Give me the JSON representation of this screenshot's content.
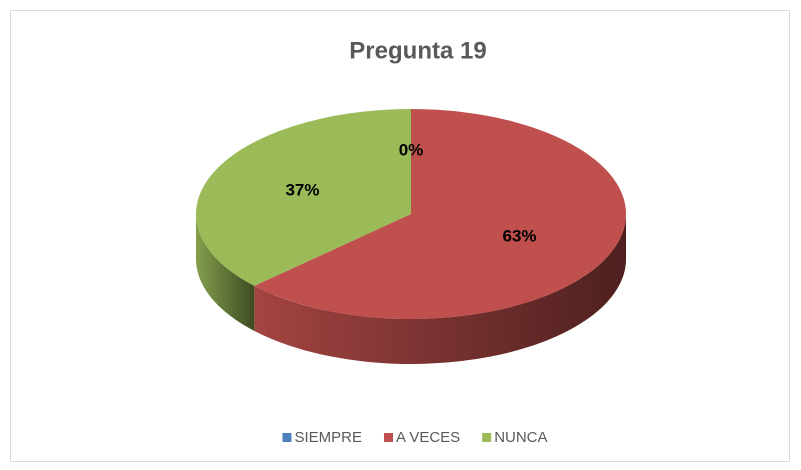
{
  "chart_data": {
    "type": "pie3d",
    "title": "Pregunta 19",
    "categories": [
      "SIEMPRE",
      "A VECES",
      "NUNCA"
    ],
    "values": [
      0,
      63,
      37
    ],
    "value_labels": [
      "0%",
      "63%",
      "37%"
    ],
    "colors": [
      "#4f81bd",
      "#c0504d",
      "#9bbb59"
    ],
    "legend": "bottom"
  }
}
